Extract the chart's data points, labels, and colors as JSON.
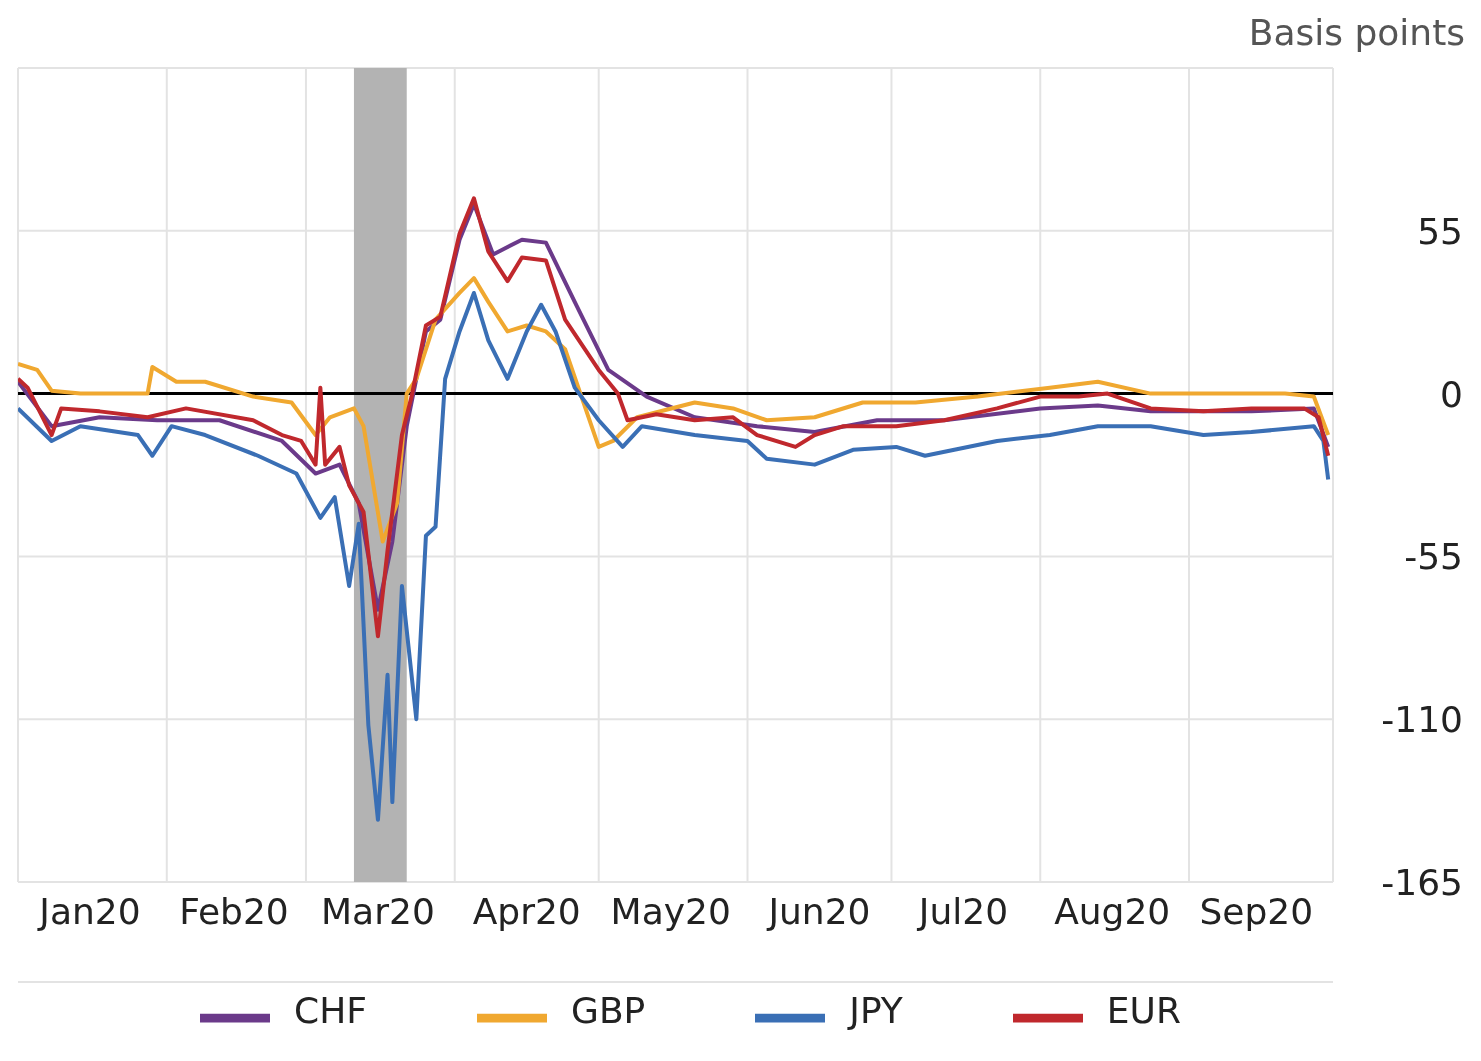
{
  "chart_data": {
    "type": "line",
    "ylabel": "Basis points",
    "xlim": [
      "2020-01-01",
      "2020-10-01"
    ],
    "xticks": [
      {
        "value": "2020-01-01",
        "label": null
      },
      {
        "value": "2020-02-01",
        "label": null
      },
      {
        "value": "2020-03-01",
        "label": null
      },
      {
        "value": "2020-04-01",
        "label": null
      },
      {
        "value": "2020-05-01",
        "label": null
      },
      {
        "value": "2020-06-01",
        "label": null
      },
      {
        "value": "2020-07-01",
        "label": null
      },
      {
        "value": "2020-08-01",
        "label": null
      },
      {
        "value": "2020-09-01",
        "label": null
      },
      {
        "value": "2020-10-01",
        "label": null
      },
      {
        "value": "2020-01-16",
        "label": "Jan20"
      },
      {
        "value": "2020-02-15",
        "label": "Feb20"
      },
      {
        "value": "2020-03-16",
        "label": "Mar20"
      },
      {
        "value": "2020-04-16",
        "label": "Apr20"
      },
      {
        "value": "2020-05-16",
        "label": "May20"
      },
      {
        "value": "2020-06-16",
        "label": "Jun20"
      },
      {
        "value": "2020-07-16",
        "label": "Jul20"
      },
      {
        "value": "2020-08-16",
        "label": "Aug20"
      },
      {
        "value": "2020-09-15",
        "label": "Sep20"
      }
    ],
    "ylim": [
      -165,
      110
    ],
    "yticks": [
      -165,
      -110,
      -55,
      0,
      55,
      {
        "value": 110,
        "label": null
      }
    ],
    "grid": true,
    "legend": "bottom",
    "marker": "none",
    "line_style": "solid",
    "ref_lines": [
      {
        "axis": "y",
        "value": 0,
        "color": "#000000"
      }
    ],
    "bands": [
      {
        "axis": "x",
        "from": "2020-03-11",
        "to": "2020-03-22",
        "color": "#b3b3b3"
      }
    ],
    "series": [
      {
        "name": "CHF",
        "color": "#6b3a8a",
        "x": [
          "2020-01-01",
          "2020-01-08",
          "2020-01-18",
          "2020-01-30",
          "2020-02-12",
          "2020-02-25",
          "2020-03-03",
          "2020-03-08",
          "2020-03-12",
          "2020-03-16",
          "2020-03-19",
          "2020-03-22",
          "2020-03-26",
          "2020-03-29",
          "2020-04-02",
          "2020-04-05",
          "2020-04-09",
          "2020-04-15",
          "2020-04-20",
          "2020-04-26",
          "2020-05-03",
          "2020-05-11",
          "2020-05-21",
          "2020-06-03",
          "2020-06-15",
          "2020-06-28",
          "2020-07-12",
          "2020-08-01",
          "2020-08-13",
          "2020-08-24",
          "2020-09-14",
          "2020-09-27",
          "2020-09-30"
        ],
        "values": [
          4,
          -11,
          -8,
          -9,
          -9,
          -16,
          -27,
          -24,
          -37,
          -73,
          -50,
          -11,
          21,
          25,
          52,
          64,
          47,
          52,
          51,
          31,
          8,
          -1,
          -8,
          -11,
          -13,
          -9,
          -9,
          -5,
          -4,
          -6,
          -6,
          -5,
          -18
        ]
      },
      {
        "name": "GBP",
        "color": "#f0a830",
        "x": [
          "2020-01-01",
          "2020-01-05",
          "2020-01-08",
          "2020-01-14",
          "2020-01-28",
          "2020-01-29",
          "2020-02-03",
          "2020-02-09",
          "2020-02-19",
          "2020-02-27",
          "2020-03-03",
          "2020-03-06",
          "2020-03-11",
          "2020-03-13",
          "2020-03-17",
          "2020-03-20",
          "2020-03-22",
          "2020-03-24",
          "2020-03-28",
          "2020-04-02",
          "2020-04-05",
          "2020-04-08",
          "2020-04-12",
          "2020-04-16",
          "2020-04-20",
          "2020-04-24",
          "2020-05-01",
          "2020-05-04",
          "2020-05-09",
          "2020-05-21",
          "2020-05-29",
          "2020-06-05",
          "2020-06-15",
          "2020-06-25",
          "2020-07-06",
          "2020-07-19",
          "2020-08-03",
          "2020-08-13",
          "2020-08-24",
          "2020-09-04",
          "2020-09-21",
          "2020-09-27",
          "2020-09-30"
        ],
        "values": [
          10,
          8,
          1,
          0,
          0,
          9,
          4,
          4,
          -1,
          -3,
          -14,
          -8,
          -5,
          -11,
          -50,
          -37,
          0,
          5,
          25,
          34,
          39,
          31,
          21,
          23,
          21,
          15,
          -18,
          -16,
          -8,
          -3,
          -5,
          -9,
          -8,
          -3,
          -3,
          -1,
          2,
          4,
          0,
          0,
          0,
          -1,
          -14
        ]
      },
      {
        "name": "JPY",
        "color": "#3a6fb5",
        "x": [
          "2020-01-01",
          "2020-01-08",
          "2020-01-14",
          "2020-01-26",
          "2020-01-29",
          "2020-02-02",
          "2020-02-09",
          "2020-02-20",
          "2020-02-28",
          "2020-03-04",
          "2020-03-07",
          "2020-03-10",
          "2020-03-12",
          "2020-03-14",
          "2020-03-16",
          "2020-03-18",
          "2020-03-19",
          "2020-03-21",
          "2020-03-24",
          "2020-03-26",
          "2020-03-28",
          "2020-03-30",
          "2020-04-02",
          "2020-04-05",
          "2020-04-08",
          "2020-04-12",
          "2020-04-16",
          "2020-04-19",
          "2020-04-22",
          "2020-04-26",
          "2020-05-01",
          "2020-05-06",
          "2020-05-10",
          "2020-05-21",
          "2020-06-01",
          "2020-06-05",
          "2020-06-15",
          "2020-06-23",
          "2020-07-02",
          "2020-07-08",
          "2020-07-23",
          "2020-08-03",
          "2020-08-13",
          "2020-08-24",
          "2020-09-04",
          "2020-09-14",
          "2020-09-27",
          "2020-09-29",
          "2020-09-30"
        ],
        "values": [
          -5,
          -16,
          -11,
          -14,
          -21,
          -11,
          -14,
          -21,
          -27,
          -42,
          -35,
          -65,
          -44,
          -112,
          -144,
          -95,
          -138,
          -65,
          -110,
          -48,
          -45,
          5,
          21,
          34,
          18,
          5,
          21,
          30,
          21,
          2,
          -9,
          -18,
          -11,
          -14,
          -16,
          -22,
          -24,
          -19,
          -18,
          -21,
          -16,
          -14,
          -11,
          -11,
          -14,
          -13,
          -11,
          -16,
          -29
        ]
      },
      {
        "name": "EUR",
        "color": "#c0282d",
        "x": [
          "2020-01-01",
          "2020-01-03",
          "2020-01-08",
          "2020-01-10",
          "2020-01-18",
          "2020-01-28",
          "2020-02-05",
          "2020-02-19",
          "2020-02-25",
          "2020-02-29",
          "2020-03-03",
          "2020-03-04",
          "2020-03-05",
          "2020-03-08",
          "2020-03-10",
          "2020-03-13",
          "2020-03-16",
          "2020-03-18",
          "2020-03-21",
          "2020-03-23",
          "2020-03-26",
          "2020-03-29",
          "2020-04-02",
          "2020-04-05",
          "2020-04-08",
          "2020-04-12",
          "2020-04-15",
          "2020-04-20",
          "2020-04-24",
          "2020-05-01",
          "2020-05-05",
          "2020-05-07",
          "2020-05-13",
          "2020-05-21",
          "2020-05-29",
          "2020-06-03",
          "2020-06-11",
          "2020-06-15",
          "2020-06-21",
          "2020-07-02",
          "2020-07-12",
          "2020-07-23",
          "2020-08-01",
          "2020-08-09",
          "2020-08-15",
          "2020-08-24",
          "2020-09-04",
          "2020-09-14",
          "2020-09-25",
          "2020-09-28",
          "2020-09-30"
        ],
        "values": [
          5,
          2,
          -14,
          -5,
          -6,
          -8,
          -5,
          -9,
          -14,
          -16,
          -24,
          2,
          -24,
          -18,
          -31,
          -40,
          -82,
          -53,
          -14,
          -1,
          23,
          26,
          54,
          66,
          48,
          38,
          46,
          45,
          25,
          8,
          0,
          -9,
          -7,
          -9,
          -8,
          -14,
          -18,
          -14,
          -11,
          -11,
          -9,
          -5,
          -1,
          -1,
          0,
          -5,
          -6,
          -5,
          -5,
          -8,
          -21
        ]
      }
    ]
  }
}
